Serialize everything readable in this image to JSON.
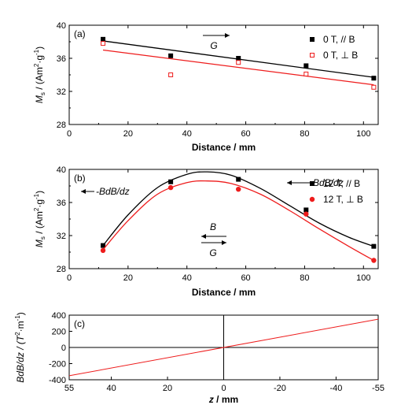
{
  "colors": {
    "black": "#000000",
    "red": "#ee1c1c"
  },
  "chart_data": [
    {
      "panel_label": "(a)",
      "type": "scatter",
      "xlabel": "Distance / mm",
      "ylabel_text": "M",
      "ylabel_sub": "s",
      "ylabel_unit": " / (Am",
      "ylabel_sup1": "2",
      "ylabel_mid": "·g",
      "ylabel_sup2": "-1",
      "ylabel_end": ")",
      "xlim": [
        0,
        105
      ],
      "ylim": [
        28,
        40
      ],
      "xticks": [
        0,
        20,
        40,
        60,
        80,
        100
      ],
      "yticks": [
        28,
        32,
        36,
        40
      ],
      "series": [
        {
          "name": "0 T, // B",
          "color": "#000000",
          "marker": "filled-square",
          "x": [
            11.5,
            34.5,
            57.5,
            80.5,
            103.5
          ],
          "y": [
            38.3,
            36.3,
            36.0,
            35.1,
            33.6
          ],
          "fit": {
            "kind": "linear",
            "x": [
              11.5,
              103.5
            ],
            "y": [
              38.1,
              33.7
            ]
          }
        },
        {
          "name": "0 T, ⊥ B",
          "color": "#ee1c1c",
          "marker": "open-square",
          "x": [
            11.5,
            34.5,
            57.5,
            80.5,
            103.5
          ],
          "y": [
            37.8,
            34.0,
            35.5,
            34.1,
            32.5
          ],
          "fit": {
            "kind": "linear",
            "x": [
              11.5,
              103.5
            ],
            "y": [
              37.0,
              32.8
            ]
          }
        }
      ],
      "annotations": [
        {
          "text": "G",
          "arrow": "right"
        }
      ]
    },
    {
      "panel_label": "(b)",
      "type": "scatter",
      "xlabel": "Distance / mm",
      "ylabel_text": "M",
      "ylabel_sub": "s",
      "ylabel_unit": " / (Am",
      "ylabel_sup1": "2",
      "ylabel_mid": "·g",
      "ylabel_sup2": "-1",
      "ylabel_end": ")",
      "xlim": [
        0,
        105
      ],
      "ylim": [
        28,
        40
      ],
      "xticks": [
        0,
        20,
        40,
        60,
        80,
        100
      ],
      "yticks": [
        28,
        32,
        36,
        40
      ],
      "series": [
        {
          "name": "12 T, // B",
          "color": "#000000",
          "marker": "filled-square",
          "x": [
            11.5,
            34.5,
            57.5,
            80.5,
            103.5
          ],
          "y": [
            30.8,
            38.5,
            38.8,
            35.1,
            30.7
          ],
          "fit": {
            "kind": "curve",
            "x": [
              11.5,
              20,
              30,
              40,
              47,
              55,
              65,
              75,
              85,
              95,
              103.5
            ],
            "y": [
              30.8,
              34.5,
              37.8,
              39.4,
              39.7,
              39.3,
              37.7,
              35.6,
              33.5,
              31.8,
              30.7
            ]
          }
        },
        {
          "name": "12 T, ⊥ B",
          "color": "#ee1c1c",
          "marker": "filled-circle",
          "x": [
            11.5,
            34.5,
            57.5,
            80.5,
            103.5
          ],
          "y": [
            30.2,
            37.8,
            37.6,
            34.6,
            29.0
          ],
          "fit": {
            "kind": "curve",
            "x": [
              11.5,
              20,
              30,
              40,
              47,
              55,
              65,
              75,
              85,
              95,
              103.5
            ],
            "y": [
              30.3,
              33.8,
              37.0,
              38.4,
              38.6,
              38.3,
              37.0,
              35.0,
              32.8,
              30.7,
              29.0
            ]
          }
        }
      ],
      "annotations": [
        {
          "text": "-BdB/dz",
          "arrow": "left"
        },
        {
          "text": "BdB/dz",
          "arrow": "left"
        },
        {
          "text": "B",
          "arrow": "left"
        },
        {
          "text": "G",
          "arrow": "right"
        }
      ]
    },
    {
      "panel_label": "(c)",
      "type": "line",
      "xlabel_var": "z",
      "xlabel_unit": " / mm",
      "ylabel_text": "BdB/dz / (T",
      "ylabel_sup": "2",
      "ylabel_end": "·m",
      "ylabel_sup2": "-1",
      "ylabel_end2": ")",
      "xlim": [
        55,
        -55
      ],
      "ylim": [
        -400,
        400
      ],
      "xticks": [
        55,
        40,
        20,
        0,
        -20,
        -40,
        -55
      ],
      "yticks": [
        -400,
        -200,
        0,
        200,
        400
      ],
      "series": [
        {
          "name": "",
          "color": "#ee1c1c",
          "x": [
            55,
            -55
          ],
          "y": [
            -350,
            350
          ]
        }
      ]
    }
  ]
}
